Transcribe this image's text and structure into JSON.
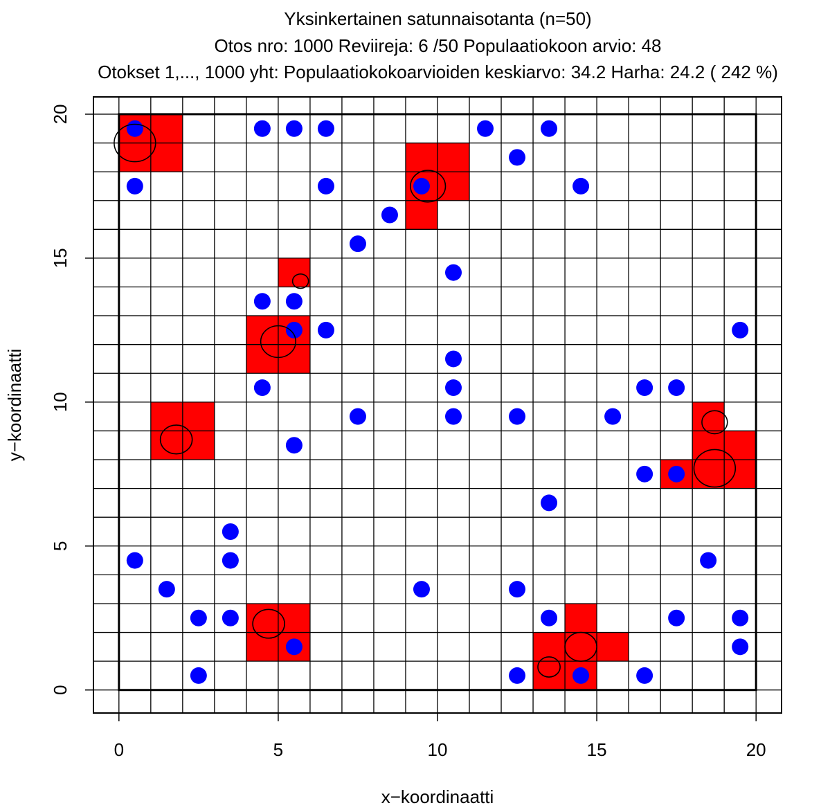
{
  "chart_data": {
    "type": "scatter",
    "title": "Yksinkertainen satunnaisotanta (n=50)",
    "subtitle": "Otos nro: 1000 Reviireja: 6 /50  Populaatiokoon arvio:  48",
    "subtitle2": "Otokset 1,..., 1000 yht: Populaatiokokoarvioiden keskiarvo:  34.2  Harha:  24.2 ( 242 %)",
    "xlabel": "x−koordinaatti",
    "ylabel": "y−koordinaatti",
    "xlim": [
      -0.8,
      20.8
    ],
    "ylim": [
      -0.8,
      20.6
    ],
    "xticks": [
      0,
      5,
      10,
      15,
      20
    ],
    "yticks": [
      0,
      5,
      10,
      15,
      20
    ],
    "grid": true,
    "colors": {
      "sampled_cell": "#ff0000",
      "point": "#0000ff",
      "territory": "#000000",
      "grid": "#000000"
    },
    "sampled_cells": [
      [
        0,
        19
      ],
      [
        1,
        19
      ],
      [
        0,
        18
      ],
      [
        1,
        18
      ],
      [
        9,
        18
      ],
      [
        10,
        18
      ],
      [
        9,
        17
      ],
      [
        10,
        17
      ],
      [
        9,
        16
      ],
      [
        5,
        14
      ],
      [
        4,
        12
      ],
      [
        5,
        12
      ],
      [
        4,
        11
      ],
      [
        5,
        11
      ],
      [
        1,
        9
      ],
      [
        2,
        9
      ],
      [
        1,
        8
      ],
      [
        2,
        8
      ],
      [
        18,
        9
      ],
      [
        18,
        8
      ],
      [
        19,
        8
      ],
      [
        17,
        7
      ],
      [
        18,
        7
      ],
      [
        19,
        7
      ],
      [
        4,
        2
      ],
      [
        5,
        2
      ],
      [
        4,
        1
      ],
      [
        5,
        1
      ],
      [
        14,
        2
      ],
      [
        13,
        1
      ],
      [
        14,
        1
      ],
      [
        15,
        1
      ],
      [
        13,
        0
      ],
      [
        14,
        0
      ]
    ],
    "points": [
      [
        0.5,
        19.5
      ],
      [
        4.5,
        19.5
      ],
      [
        5.5,
        19.5
      ],
      [
        6.5,
        19.5
      ],
      [
        11.5,
        19.5
      ],
      [
        13.5,
        19.5
      ],
      [
        12.5,
        18.5
      ],
      [
        0.5,
        17.5
      ],
      [
        6.5,
        17.5
      ],
      [
        9.5,
        17.5
      ],
      [
        14.5,
        17.5
      ],
      [
        8.5,
        16.5
      ],
      [
        7.5,
        15.5
      ],
      [
        10.5,
        14.5
      ],
      [
        4.5,
        13.5
      ],
      [
        5.5,
        13.5
      ],
      [
        5.5,
        12.5
      ],
      [
        6.5,
        12.5
      ],
      [
        19.5,
        12.5
      ],
      [
        10.5,
        11.5
      ],
      [
        4.5,
        10.5
      ],
      [
        10.5,
        10.5
      ],
      [
        16.5,
        10.5
      ],
      [
        17.5,
        10.5
      ],
      [
        7.5,
        9.5
      ],
      [
        10.5,
        9.5
      ],
      [
        12.5,
        9.5
      ],
      [
        15.5,
        9.5
      ],
      [
        5.5,
        8.5
      ],
      [
        16.5,
        7.5
      ],
      [
        17.5,
        7.5
      ],
      [
        13.5,
        6.5
      ],
      [
        3.5,
        5.5
      ],
      [
        0.5,
        4.5
      ],
      [
        3.5,
        4.5
      ],
      [
        18.5,
        4.5
      ],
      [
        1.5,
        3.5
      ],
      [
        9.5,
        3.5
      ],
      [
        12.5,
        3.5
      ],
      [
        2.5,
        2.5
      ],
      [
        3.5,
        2.5
      ],
      [
        13.5,
        2.5
      ],
      [
        17.5,
        2.5
      ],
      [
        19.5,
        2.5
      ],
      [
        5.5,
        1.5
      ],
      [
        19.5,
        1.5
      ],
      [
        2.5,
        0.5
      ],
      [
        12.5,
        0.5
      ],
      [
        14.5,
        0.5
      ],
      [
        16.5,
        0.5
      ]
    ],
    "territories": [
      {
        "x": 0.5,
        "y": 19.0,
        "r": 0.65
      },
      {
        "x": 9.7,
        "y": 17.5,
        "r": 0.55
      },
      {
        "x": 5.7,
        "y": 14.2,
        "r": 0.25
      },
      {
        "x": 5.0,
        "y": 12.1,
        "r": 0.55
      },
      {
        "x": 1.8,
        "y": 8.7,
        "r": 0.5
      },
      {
        "x": 18.7,
        "y": 9.3,
        "r": 0.4
      },
      {
        "x": 18.7,
        "y": 7.7,
        "r": 0.65
      },
      {
        "x": 4.7,
        "y": 2.3,
        "r": 0.5
      },
      {
        "x": 14.5,
        "y": 1.5,
        "r": 0.5
      },
      {
        "x": 13.5,
        "y": 0.8,
        "r": 0.35
      }
    ]
  }
}
